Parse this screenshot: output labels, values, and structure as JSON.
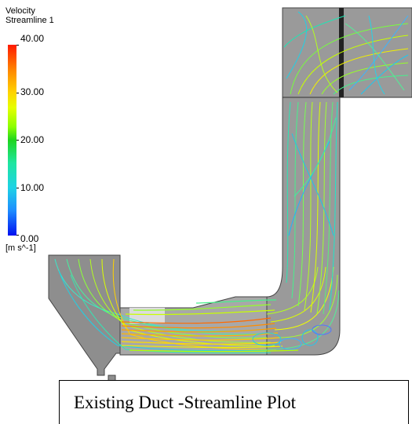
{
  "legend": {
    "variable": "Velocity",
    "object": "Streamline 1",
    "ticks": [
      "40.00",
      "30.00",
      "20.00",
      "10.00",
      "0.00"
    ],
    "unit": "[m s^-1]",
    "min": 0,
    "max": 40
  },
  "caption": "Existing Duct -Streamline Plot",
  "colors": {
    "duct_fill": "#9a9a9a",
    "duct_outline": "#444444",
    "high": "#ff3a00",
    "mid": "#e6ff00",
    "low": "#1ed2e6"
  }
}
